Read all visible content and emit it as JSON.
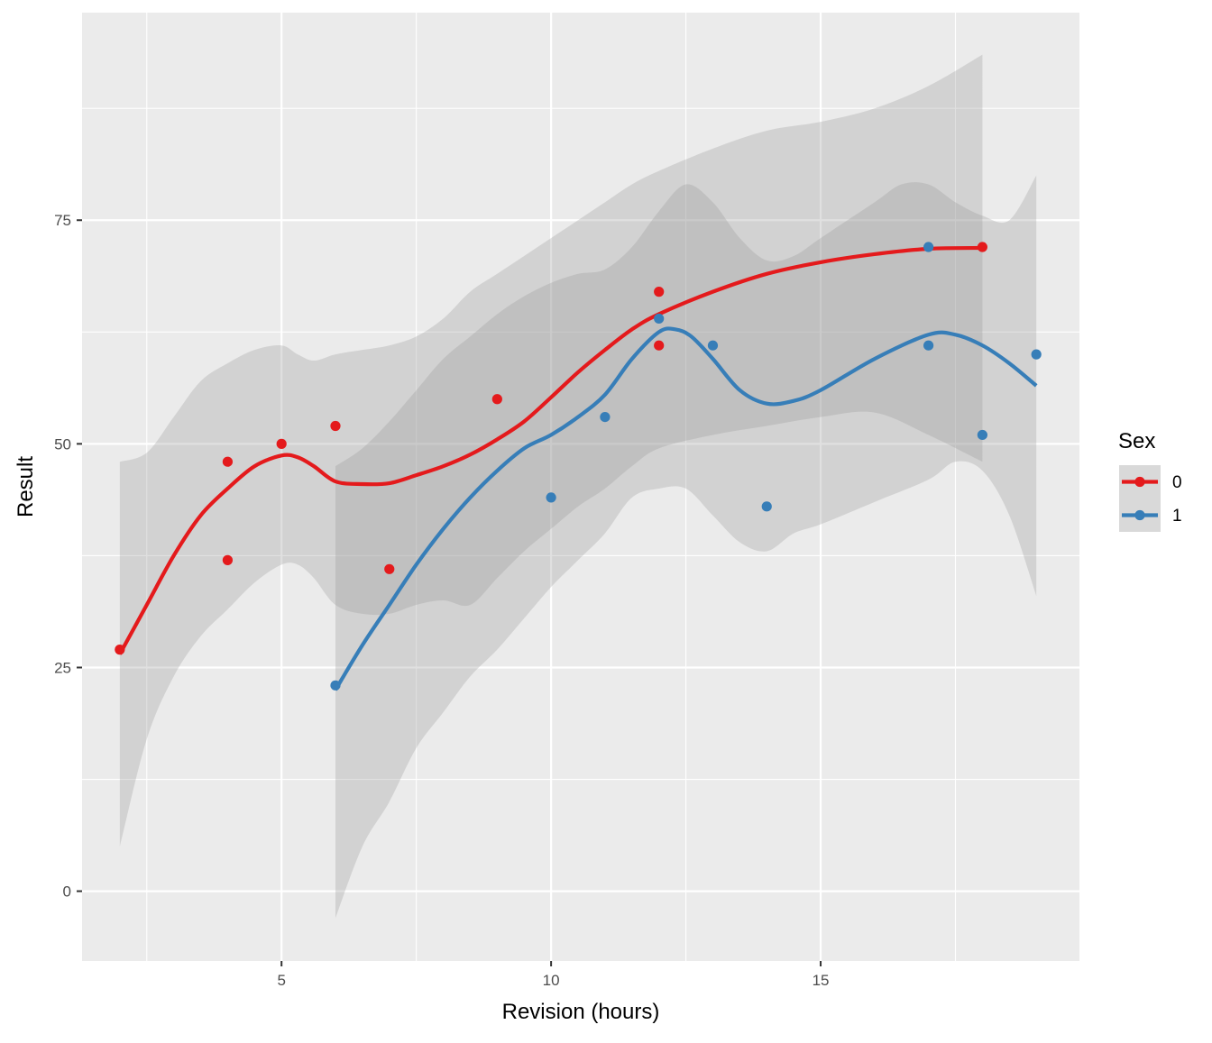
{
  "chart_data": {
    "type": "scatter",
    "xlabel": "Revision (hours)",
    "ylabel": "Result",
    "xlim": [
      1.3,
      19.8
    ],
    "ylim": [
      -7.8,
      98.2
    ],
    "x_ticks": [
      5,
      10,
      15
    ],
    "y_ticks": [
      0,
      25,
      50,
      75
    ],
    "x_minor": [
      2.5,
      7.5,
      12.5,
      17.5
    ],
    "y_minor": [
      12.5,
      37.5,
      62.5,
      87.5
    ],
    "grid": true,
    "legend": {
      "title": "Sex",
      "position": "right"
    },
    "series": [
      {
        "name": "0",
        "color": "#e41a1c",
        "points": [
          [
            2,
            27
          ],
          [
            4,
            48
          ],
          [
            4,
            37
          ],
          [
            5,
            50
          ],
          [
            6,
            52
          ],
          [
            7,
            36
          ],
          [
            9,
            55
          ],
          [
            12,
            67
          ],
          [
            12,
            61
          ],
          [
            18,
            72
          ]
        ],
        "smooth": [
          [
            2,
            26.5
          ],
          [
            2.5,
            32
          ],
          [
            3,
            37.5
          ],
          [
            3.5,
            42
          ],
          [
            4,
            45
          ],
          [
            4.5,
            47.5
          ],
          [
            5,
            48.7
          ],
          [
            5.3,
            48.5
          ],
          [
            5.6,
            47.5
          ],
          [
            6,
            45.8
          ],
          [
            6.5,
            45.5
          ],
          [
            7,
            45.6
          ],
          [
            7.5,
            46.5
          ],
          [
            8,
            47.5
          ],
          [
            8.5,
            48.8
          ],
          [
            9,
            50.5
          ],
          [
            9.5,
            52.5
          ],
          [
            10,
            55.2
          ],
          [
            10.5,
            58
          ],
          [
            11,
            60.5
          ],
          [
            11.5,
            62.8
          ],
          [
            12,
            64.5
          ],
          [
            13,
            67
          ],
          [
            14,
            69
          ],
          [
            15,
            70.3
          ],
          [
            16,
            71.2
          ],
          [
            17,
            71.8
          ],
          [
            18,
            71.9
          ]
        ],
        "band_upper": [
          [
            2,
            48
          ],
          [
            2.5,
            49
          ],
          [
            3,
            53
          ],
          [
            3.5,
            57
          ],
          [
            4,
            59
          ],
          [
            4.5,
            60.5
          ],
          [
            5,
            61
          ],
          [
            5.3,
            60
          ],
          [
            5.6,
            59.3
          ],
          [
            6,
            60
          ],
          [
            6.5,
            60.5
          ],
          [
            7,
            61
          ],
          [
            7.5,
            62
          ],
          [
            8,
            64
          ],
          [
            8.5,
            67
          ],
          [
            9,
            69
          ],
          [
            9.5,
            71
          ],
          [
            10,
            73
          ],
          [
            10.5,
            75
          ],
          [
            11,
            77
          ],
          [
            11.5,
            79
          ],
          [
            12,
            80.5
          ],
          [
            13,
            83
          ],
          [
            14,
            85
          ],
          [
            15,
            86
          ],
          [
            16,
            87.5
          ],
          [
            17,
            90
          ],
          [
            18,
            93.5
          ]
        ],
        "band_lower": [
          [
            2,
            5
          ],
          [
            2.5,
            17
          ],
          [
            3,
            24
          ],
          [
            3.5,
            28.5
          ],
          [
            4,
            31.5
          ],
          [
            4.5,
            34.5
          ],
          [
            5,
            36.5
          ],
          [
            5.3,
            36.5
          ],
          [
            5.6,
            35
          ],
          [
            6,
            32
          ],
          [
            6.5,
            31
          ],
          [
            7,
            31
          ],
          [
            7.5,
            32
          ],
          [
            8,
            32.5
          ],
          [
            8.5,
            32
          ],
          [
            9,
            35
          ],
          [
            9.5,
            38
          ],
          [
            10,
            40.5
          ],
          [
            10.5,
            43
          ],
          [
            11,
            45
          ],
          [
            11.5,
            47.5
          ],
          [
            12,
            49.5
          ],
          [
            13,
            51
          ],
          [
            14,
            52
          ],
          [
            15,
            53
          ],
          [
            16,
            53.5
          ],
          [
            17,
            51
          ],
          [
            18,
            48
          ]
        ]
      },
      {
        "name": "1",
        "color": "#377eb8",
        "points": [
          [
            6,
            23
          ],
          [
            10,
            44
          ],
          [
            11,
            53
          ],
          [
            12,
            64
          ],
          [
            13,
            61
          ],
          [
            14,
            43
          ],
          [
            17,
            72
          ],
          [
            17,
            61
          ],
          [
            18,
            51
          ],
          [
            19,
            60
          ]
        ],
        "smooth": [
          [
            6,
            22.5
          ],
          [
            6.5,
            27.5
          ],
          [
            7,
            32
          ],
          [
            7.5,
            36.5
          ],
          [
            8,
            40.5
          ],
          [
            8.5,
            44
          ],
          [
            9,
            47
          ],
          [
            9.5,
            49.5
          ],
          [
            10,
            51
          ],
          [
            10.5,
            53
          ],
          [
            11,
            55.5
          ],
          [
            11.5,
            59.5
          ],
          [
            12,
            62.5
          ],
          [
            12.3,
            62.8
          ],
          [
            12.6,
            62
          ],
          [
            13,
            59.5
          ],
          [
            13.5,
            56
          ],
          [
            14,
            54.5
          ],
          [
            14.5,
            54.8
          ],
          [
            15,
            56
          ],
          [
            16,
            59.5
          ],
          [
            17,
            62.2
          ],
          [
            17.5,
            62.2
          ],
          [
            18,
            61
          ],
          [
            18.5,
            59
          ],
          [
            19,
            56.5
          ]
        ],
        "band_upper": [
          [
            6,
            47.5
          ],
          [
            6.5,
            49.5
          ],
          [
            7,
            52.5
          ],
          [
            7.5,
            56
          ],
          [
            8,
            59.5
          ],
          [
            8.5,
            62
          ],
          [
            9,
            64.5
          ],
          [
            9.5,
            66.5
          ],
          [
            10,
            68
          ],
          [
            10.5,
            69
          ],
          [
            11,
            69.5
          ],
          [
            11.5,
            72
          ],
          [
            12,
            76
          ],
          [
            12.5,
            79
          ],
          [
            13,
            77
          ],
          [
            13.5,
            73
          ],
          [
            14,
            70.5
          ],
          [
            14.5,
            71
          ],
          [
            15,
            73
          ],
          [
            16,
            77
          ],
          [
            16.5,
            79
          ],
          [
            17,
            79
          ],
          [
            17.5,
            77
          ],
          [
            18,
            75.5
          ],
          [
            18.5,
            75
          ],
          [
            19,
            80
          ]
        ],
        "band_lower": [
          [
            6,
            -3
          ],
          [
            6.5,
            5
          ],
          [
            7,
            10
          ],
          [
            7.5,
            16
          ],
          [
            8,
            20
          ],
          [
            8.5,
            24
          ],
          [
            9,
            27
          ],
          [
            9.5,
            30.5
          ],
          [
            10,
            34
          ],
          [
            10.5,
            37
          ],
          [
            11,
            40
          ],
          [
            11.5,
            44
          ],
          [
            12,
            45
          ],
          [
            12.5,
            45
          ],
          [
            13,
            42
          ],
          [
            13.5,
            39
          ],
          [
            14,
            38
          ],
          [
            14.5,
            40
          ],
          [
            15,
            41
          ],
          [
            16,
            43.5
          ],
          [
            17,
            46
          ],
          [
            17.5,
            48
          ],
          [
            18,
            47
          ],
          [
            18.5,
            42
          ],
          [
            19,
            33
          ]
        ]
      }
    ]
  }
}
